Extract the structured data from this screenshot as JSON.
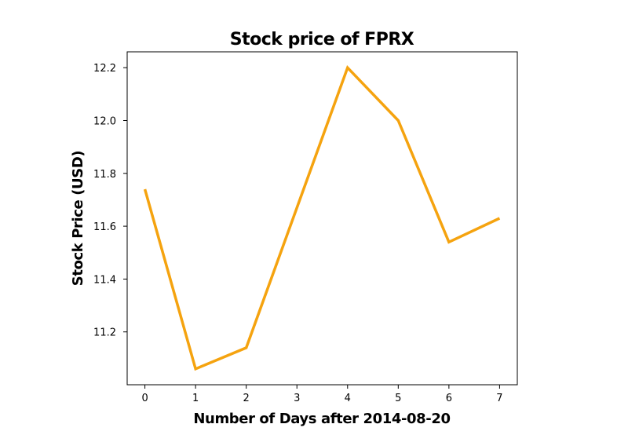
{
  "chart_data": {
    "type": "line",
    "title": "Stock price of FPRX",
    "xlabel": "Number of Days after 2014-08-20",
    "ylabel": "Stock Price (USD)",
    "x": [
      0,
      1,
      2,
      3,
      4,
      5,
      6,
      7
    ],
    "series": [
      {
        "values": [
          11.74,
          11.06,
          11.14,
          11.67,
          12.2,
          12.0,
          11.54,
          11.63
        ],
        "color": "#f5a30f"
      }
    ],
    "xticks": [
      "0",
      "1",
      "2",
      "3",
      "4",
      "5",
      "6",
      "7"
    ],
    "yticks": [
      "11.2",
      "11.4",
      "11.6",
      "11.8",
      "12.0",
      "12.2"
    ],
    "xlim": [
      -0.35,
      7.35
    ],
    "ylim": [
      11.0,
      12.26
    ],
    "grid": false,
    "legend": "none"
  }
}
